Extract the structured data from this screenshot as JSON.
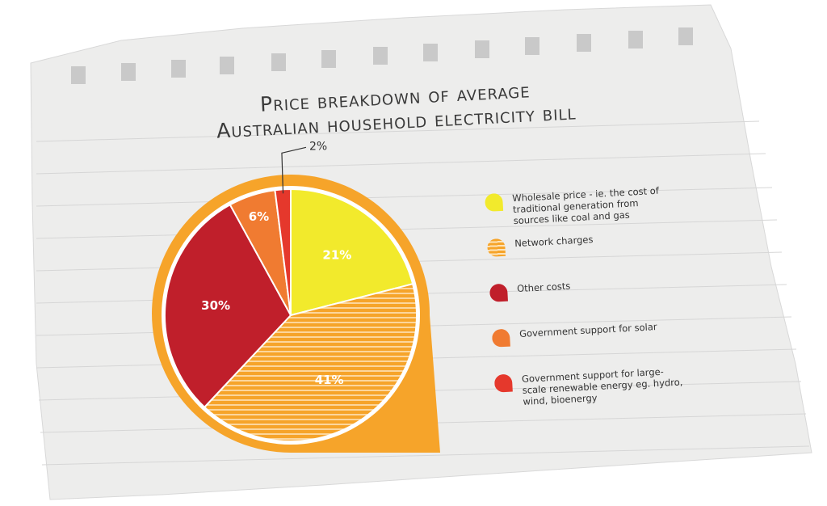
{
  "chart_data": {
    "type": "pie",
    "title": [
      "Price breakdown of average",
      "Australian household electricity bill"
    ],
    "categories": [
      "Wholesale price - ie. the cost of traditional generation from sources like coal and gas",
      "Network charges",
      "Other costs",
      "Government support for solar",
      "Government support for large-scale renewable energy eg. hydro, wind, bioenergy"
    ],
    "values": [
      21,
      41,
      30,
      6,
      2
    ],
    "value_labels": [
      "21%",
      "41%",
      "30%",
      "6%",
      "2%"
    ],
    "colors": [
      "#f2ea2c",
      "#f6a42a",
      "#c01f2b",
      "#f07b31",
      "#e5382c"
    ],
    "striped": [
      false,
      true,
      false,
      false,
      false
    ]
  }
}
